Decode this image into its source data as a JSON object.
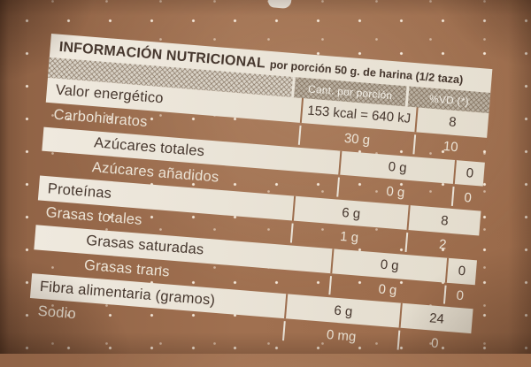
{
  "header": {
    "title": "INFORMACIÓN NUTRICIONAL",
    "subtitle": "por porción 50 g. de harina (1/2 taza)",
    "col_amount": "Cant. por porción",
    "col_dv": "%VD (*)"
  },
  "table": {
    "rows": [
      {
        "label": "Valor energético",
        "value": "153 kcal = 640 kJ",
        "dv": "8"
      },
      {
        "label": "Carbohidratos",
        "value": "30 g",
        "dv": "10"
      },
      {
        "label": "Azúcares totales",
        "value": "0 g",
        "dv": "0"
      },
      {
        "label": "Azúcares añadidos",
        "value": "0 g",
        "dv": "0"
      },
      {
        "label": "Proteínas",
        "value": "6 g",
        "dv": "8"
      },
      {
        "label": "Grasas totales",
        "value": "1 g",
        "dv": "2"
      },
      {
        "label": "Grasas saturadas",
        "value": "0 g",
        "dv": "0"
      },
      {
        "label": "Grasas trans",
        "value": "0 g",
        "dv": "0"
      },
      {
        "label": "Fibra alimentaria (gramos)",
        "value": "6 g",
        "dv": "24"
      },
      {
        "label": "Sodio",
        "value": "0 mg",
        "dv": "0"
      }
    ]
  },
  "colors": {
    "bag": "#9c6c4c",
    "paper": "#ece6da",
    "ink": "#46372e",
    "printwhite": "#ece4d6"
  }
}
